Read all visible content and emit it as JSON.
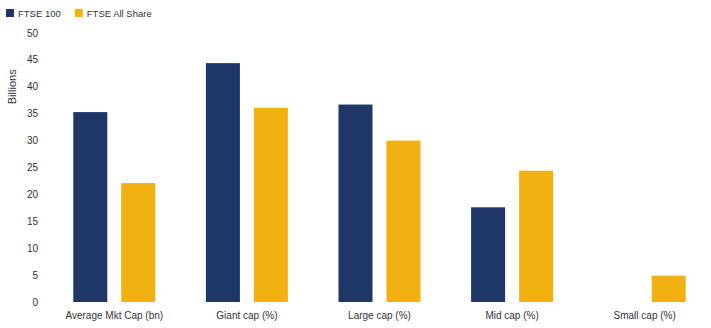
{
  "chart_data": {
    "type": "bar",
    "categories": [
      "Average Mkt Cap (bn)",
      "Giant cap (%)",
      "Large cap (%)",
      "Mid cap (%)",
      "Small cap (%)"
    ],
    "series": [
      {
        "name": "FTSE 100",
        "color": "#1f3668",
        "values": [
          35.3,
          44.4,
          36.7,
          17.6,
          0
        ]
      },
      {
        "name": "FTSE All Share",
        "color": "#f0b111",
        "values": [
          22.1,
          36.1,
          30.0,
          24.4,
          4.9
        ]
      }
    ],
    "y_label": "Billions",
    "ylim": [
      0,
      50
    ],
    "yticks": [
      0,
      5,
      10,
      15,
      20,
      25,
      30,
      35,
      40,
      45,
      50
    ],
    "grid": false,
    "legend": "top-left"
  }
}
